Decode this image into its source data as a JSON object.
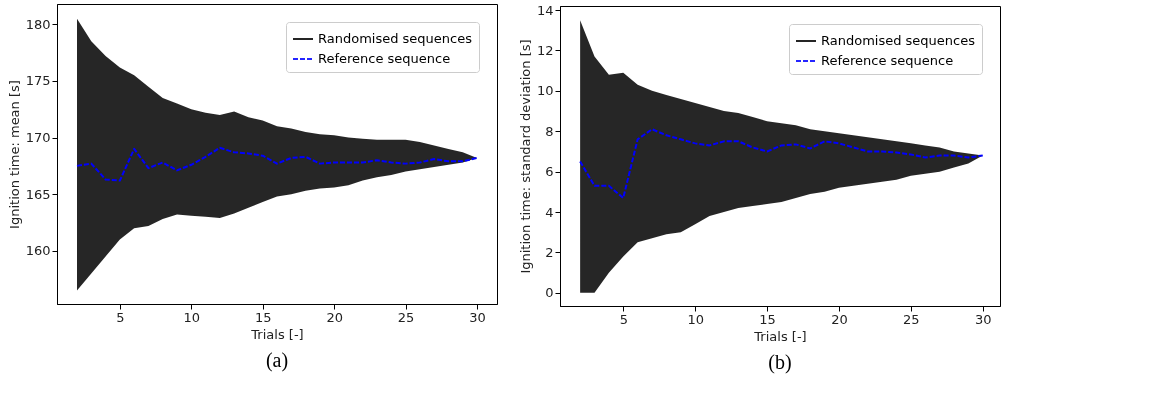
{
  "chart_data": [
    {
      "type": "line",
      "xlabel": "Trials [-]",
      "ylabel": "Ignition time: mean [s]",
      "xlim": [
        0.6,
        31.4
      ],
      "ylim": [
        155.3,
        181.8
      ],
      "xticks": [
        5,
        10,
        15,
        20,
        25,
        30
      ],
      "yticks": [
        160,
        165,
        170,
        175,
        180
      ],
      "grid": false,
      "legend": "top right",
      "annotations": [
        "(a)"
      ],
      "x": [
        2,
        3,
        4,
        5,
        6,
        7,
        8,
        9,
        10,
        11,
        12,
        13,
        14,
        15,
        16,
        17,
        18,
        19,
        20,
        21,
        22,
        23,
        24,
        25,
        26,
        27,
        28,
        29,
        30
      ],
      "series": [
        {
          "name": "Randomised sequences",
          "color": "#000000",
          "line_style": "solid",
          "values": [
            null,
            null,
            null,
            null,
            null,
            null,
            null,
            null,
            null,
            null,
            null,
            null,
            null,
            null,
            null,
            null,
            null,
            null,
            null,
            null,
            null,
            null,
            null,
            null,
            null,
            null,
            null,
            null,
            null
          ],
          "upper": [
            180.5,
            178.5,
            177.2,
            176.2,
            175.5,
            174.5,
            173.5,
            173,
            172.5,
            172.2,
            172,
            172.3,
            171.8,
            171.5,
            171,
            170.8,
            170.5,
            170.3,
            170.2,
            170,
            169.9,
            169.8,
            169.8,
            169.8,
            169.6,
            169.3,
            169,
            168.7,
            168.2
          ],
          "lower": [
            156.5,
            158,
            159.5,
            161,
            162,
            162.2,
            162.8,
            163.2,
            163.1,
            163,
            162.9,
            163.3,
            163.8,
            164.3,
            164.8,
            165,
            165.3,
            165.5,
            165.6,
            165.8,
            166.2,
            166.5,
            166.7,
            167,
            167.2,
            167.4,
            167.6,
            167.8,
            168.2
          ]
        },
        {
          "name": "Reference sequence",
          "color": "#0000ff",
          "line_style": "dashed",
          "values": [
            167.5,
            167.7,
            166.3,
            166.2,
            169,
            167.3,
            167.8,
            167.1,
            167.6,
            168.3,
            169.1,
            168.7,
            168.6,
            168.4,
            167.7,
            168.2,
            168.3,
            167.7,
            167.8,
            167.8,
            167.8,
            168,
            167.8,
            167.7,
            167.8,
            168.1,
            167.9,
            167.9,
            168.2
          ]
        }
      ]
    },
    {
      "type": "line",
      "xlabel": "Trials [-]",
      "ylabel": "Ignition time: standard deviation [s]",
      "xlim": [
        0.6,
        31.2
      ],
      "ylim": [
        -0.65,
        14.2
      ],
      "xticks": [
        5,
        10,
        15,
        20,
        25,
        30
      ],
      "yticks": [
        0,
        2,
        4,
        6,
        8,
        10,
        12,
        14
      ],
      "grid": false,
      "legend": "top right",
      "annotations": [
        "(b)"
      ],
      "x": [
        2,
        3,
        4,
        5,
        6,
        7,
        8,
        9,
        10,
        11,
        12,
        13,
        14,
        15,
        16,
        17,
        18,
        19,
        20,
        21,
        22,
        23,
        24,
        25,
        26,
        27,
        28,
        29,
        30
      ],
      "series": [
        {
          "name": "Randomised sequences",
          "color": "#000000",
          "line_style": "solid",
          "values": [
            null,
            null,
            null,
            null,
            null,
            null,
            null,
            null,
            null,
            null,
            null,
            null,
            null,
            null,
            null,
            null,
            null,
            null,
            null,
            null,
            null,
            null,
            null,
            null,
            null,
            null,
            null,
            null,
            null
          ],
          "upper": [
            13.5,
            11.7,
            10.8,
            10.9,
            10.3,
            10,
            9.8,
            9.6,
            9.4,
            9.2,
            9,
            8.9,
            8.7,
            8.5,
            8.4,
            8.3,
            8.1,
            8,
            7.9,
            7.8,
            7.7,
            7.6,
            7.5,
            7.4,
            7.3,
            7.2,
            7,
            6.9,
            6.8
          ],
          "lower": [
            0,
            0,
            1,
            1.8,
            2.5,
            2.7,
            2.9,
            3,
            3.4,
            3.8,
            4,
            4.2,
            4.3,
            4.4,
            4.5,
            4.7,
            4.9,
            5,
            5.2,
            5.3,
            5.4,
            5.5,
            5.6,
            5.8,
            5.9,
            6,
            6.2,
            6.4,
            6.8
          ]
        },
        {
          "name": "Reference sequence",
          "color": "#0000ff",
          "line_style": "dashed",
          "values": [
            6.5,
            5.3,
            5.3,
            4.7,
            7.6,
            8.1,
            7.8,
            7.6,
            7.4,
            7.3,
            7.5,
            7.5,
            7.2,
            7,
            7.3,
            7.35,
            7.15,
            7.5,
            7.4,
            7.2,
            7,
            7,
            6.95,
            6.85,
            6.7,
            6.8,
            6.8,
            6.7,
            6.8
          ]
        }
      ]
    }
  ]
}
